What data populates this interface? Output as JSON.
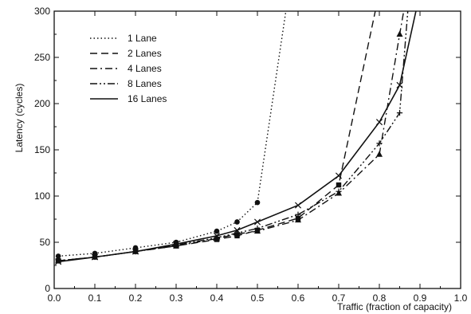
{
  "chart_data": {
    "type": "line",
    "title": "",
    "xlabel": "Traffic (fraction of capacity)",
    "ylabel": "Latency (cycles)",
    "xlim": [
      0.0,
      1.0
    ],
    "ylim": [
      0,
      300
    ],
    "xticks": [
      0.0,
      0.1,
      0.2,
      0.3,
      0.4,
      0.5,
      0.6,
      0.7,
      0.8,
      0.9,
      1.0
    ],
    "xtick_labels": [
      "0.0",
      "0.1",
      "0.2",
      "0.3",
      "0.4",
      "0.5",
      "0.6",
      "0.7",
      "0.8",
      "0.9",
      "1.0"
    ],
    "yticks": [
      0,
      50,
      100,
      150,
      200,
      250,
      300
    ],
    "ytick_labels": [
      "0",
      "50",
      "100",
      "150",
      "200",
      "250",
      "300"
    ],
    "grid": false,
    "legend_position": "top-left",
    "series": [
      {
        "name": "1 Lane",
        "style": "dotted",
        "marker": "circle",
        "x": [
          0.01,
          0.1,
          0.2,
          0.3,
          0.4,
          0.45,
          0.5,
          0.57
        ],
        "y": [
          35,
          38,
          44,
          50,
          62,
          72,
          93,
          300
        ],
        "markers": [
          true,
          true,
          true,
          true,
          true,
          true,
          true,
          false
        ]
      },
      {
        "name": "2 Lanes",
        "style": "dashed",
        "marker": "square",
        "x": [
          0.01,
          0.1,
          0.2,
          0.3,
          0.4,
          0.45,
          0.5,
          0.6,
          0.7,
          0.79
        ],
        "y": [
          30,
          34,
          40,
          46,
          53,
          57,
          63,
          76,
          112,
          300
        ],
        "markers": [
          true,
          true,
          true,
          true,
          true,
          true,
          true,
          true,
          true,
          false
        ]
      },
      {
        "name": "4 Lanes",
        "style": "dashdot",
        "marker": "triangle",
        "x": [
          0.01,
          0.1,
          0.2,
          0.3,
          0.4,
          0.45,
          0.5,
          0.6,
          0.7,
          0.8,
          0.85,
          0.86
        ],
        "y": [
          30,
          34,
          40,
          46,
          54,
          59,
          62,
          74,
          103,
          145,
          275,
          300
        ],
        "markers": [
          true,
          true,
          true,
          true,
          true,
          true,
          true,
          true,
          true,
          true,
          true,
          false
        ]
      },
      {
        "name": "8 Lanes",
        "style": "dashdotdot",
        "marker": "plus",
        "x": [
          0.01,
          0.1,
          0.2,
          0.3,
          0.4,
          0.45,
          0.5,
          0.6,
          0.7,
          0.8,
          0.85,
          0.87
        ],
        "y": [
          30,
          34,
          40,
          47,
          55,
          60,
          65,
          80,
          105,
          157,
          190,
          300
        ],
        "markers": [
          true,
          true,
          true,
          true,
          true,
          true,
          true,
          true,
          true,
          true,
          true,
          false
        ]
      },
      {
        "name": "16 Lanes",
        "style": "solid",
        "marker": "cross",
        "x": [
          0.01,
          0.1,
          0.2,
          0.3,
          0.4,
          0.45,
          0.5,
          0.6,
          0.7,
          0.8,
          0.85,
          0.89
        ],
        "y": [
          29,
          34,
          40,
          48,
          57,
          63,
          72,
          90,
          122,
          180,
          220,
          300
        ],
        "markers": [
          true,
          true,
          true,
          true,
          true,
          true,
          true,
          true,
          true,
          true,
          true,
          false
        ]
      }
    ],
    "colors": {
      "ink": "#111111",
      "background": "#ffffff"
    }
  }
}
